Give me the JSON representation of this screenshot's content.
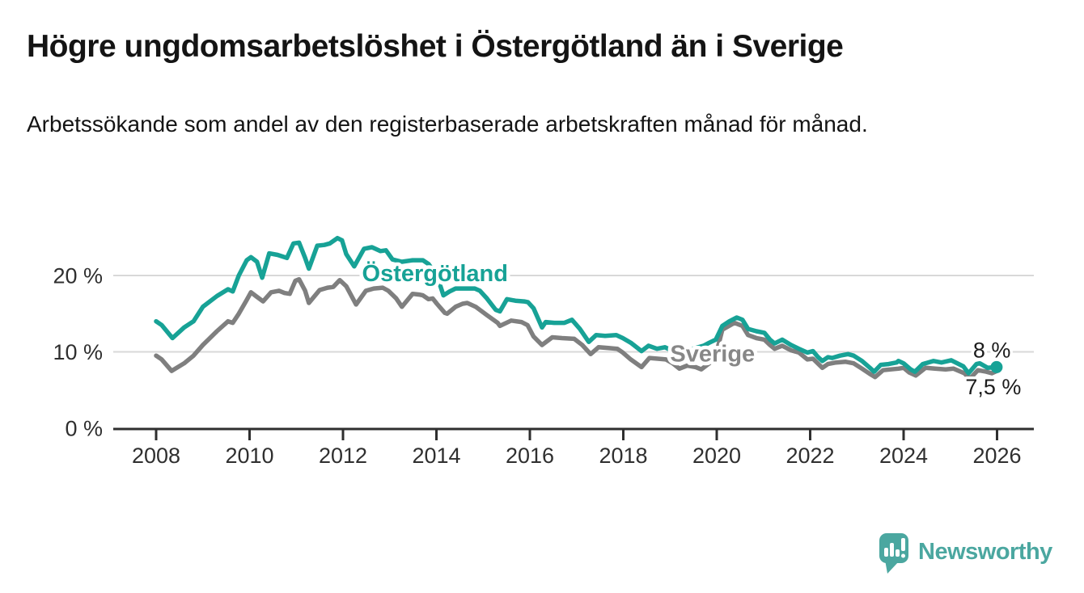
{
  "header": {
    "title": "Högre ungdomsarbetslöshet i Östergötland än i Sverige",
    "subtitle": "Arbetssökande som andel av den registerbaserade arbetskraften månad för månad."
  },
  "footer": {
    "brand": "Newsworthy",
    "brand_color": "#4ba7a0",
    "logo_icon": "speech-bubble-bar-chart-icon"
  },
  "colors": {
    "ostergotland": "#17a296",
    "sverige": "#7f7f7f",
    "sverige_label": "#878787",
    "grid": "#d8d8d8",
    "axis": "#2f2f2f",
    "text": "#141414",
    "end_label_text": "#1c1c1c"
  },
  "chart_data": {
    "type": "line",
    "title": "Högre ungdomsarbetslöshet i Östergötland än i Sverige",
    "subtitle": "Arbetssökande som andel av den registerbaserade arbetskraften månad för månad.",
    "grid": "horizontal-only",
    "legend_position": "inline-labels",
    "xlim": [
      2007.08,
      2026.8
    ],
    "ylim": [
      0,
      26.5
    ],
    "x_ticks": {
      "values": [
        2008,
        2010,
        2012,
        2014,
        2016,
        2018,
        2020,
        2022,
        2024,
        2026
      ],
      "labels": [
        "2008",
        "2010",
        "2012",
        "2014",
        "2016",
        "2018",
        "2020",
        "2022",
        "2024",
        "2026"
      ]
    },
    "y_ticks": [
      {
        "value": 0,
        "label": "0 %"
      },
      {
        "value": 10,
        "label": "10 %"
      },
      {
        "value": 20,
        "label": "20 %"
      }
    ],
    "series": [
      {
        "name": "Sverige",
        "slug": "sverige",
        "color": "#7f7f7f",
        "end_dot": false,
        "label": {
          "text": "Sverige",
          "color": "#878787",
          "x": 2019.91,
          "y": 9.8
        },
        "end_label": {
          "text": "7,5 %",
          "x": 2025.92,
          "y": 5.4
        },
        "last_value": "7,5 %",
        "points": [
          [
            2008.0,
            9.5
          ],
          [
            2008.12,
            9.0
          ],
          [
            2008.33,
            7.5
          ],
          [
            2008.6,
            8.5
          ],
          [
            2008.8,
            9.5
          ],
          [
            2009.0,
            10.9
          ],
          [
            2009.3,
            12.7
          ],
          [
            2009.54,
            14.0
          ],
          [
            2009.64,
            13.8
          ],
          [
            2009.77,
            15.0
          ],
          [
            2009.94,
            16.8
          ],
          [
            2010.03,
            17.8
          ],
          [
            2010.16,
            17.2
          ],
          [
            2010.29,
            16.6
          ],
          [
            2010.46,
            17.8
          ],
          [
            2010.63,
            18.0
          ],
          [
            2010.75,
            17.7
          ],
          [
            2010.86,
            17.6
          ],
          [
            2010.98,
            19.3
          ],
          [
            2011.06,
            19.5
          ],
          [
            2011.19,
            18.0
          ],
          [
            2011.27,
            16.4
          ],
          [
            2011.5,
            18.1
          ],
          [
            2011.67,
            18.4
          ],
          [
            2011.79,
            18.5
          ],
          [
            2011.93,
            19.4
          ],
          [
            2012.07,
            18.6
          ],
          [
            2012.28,
            16.2
          ],
          [
            2012.49,
            18.0
          ],
          [
            2012.66,
            18.3
          ],
          [
            2012.85,
            18.4
          ],
          [
            2012.97,
            18.0
          ],
          [
            2013.14,
            17.0
          ],
          [
            2013.26,
            15.9
          ],
          [
            2013.49,
            17.6
          ],
          [
            2013.63,
            17.5
          ],
          [
            2013.71,
            17.4
          ],
          [
            2013.83,
            16.9
          ],
          [
            2013.92,
            17.0
          ],
          [
            2014.01,
            16.3
          ],
          [
            2014.18,
            15.1
          ],
          [
            2014.23,
            15.0
          ],
          [
            2014.41,
            15.9
          ],
          [
            2014.56,
            16.3
          ],
          [
            2014.66,
            16.4
          ],
          [
            2014.84,
            15.9
          ],
          [
            2015.08,
            14.8
          ],
          [
            2015.31,
            13.8
          ],
          [
            2015.36,
            13.4
          ],
          [
            2015.6,
            14.1
          ],
          [
            2015.82,
            13.9
          ],
          [
            2015.95,
            13.5
          ],
          [
            2016.08,
            12.0
          ],
          [
            2016.26,
            10.9
          ],
          [
            2016.48,
            11.9
          ],
          [
            2016.69,
            11.8
          ],
          [
            2016.95,
            11.7
          ],
          [
            2017.12,
            10.9
          ],
          [
            2017.3,
            9.7
          ],
          [
            2017.47,
            10.6
          ],
          [
            2017.68,
            10.5
          ],
          [
            2017.87,
            10.4
          ],
          [
            2017.99,
            9.9
          ],
          [
            2018.16,
            9.0
          ],
          [
            2018.39,
            8.0
          ],
          [
            2018.56,
            9.2
          ],
          [
            2018.74,
            9.1
          ],
          [
            2018.91,
            9.0
          ],
          [
            2019.06,
            8.5
          ],
          [
            2019.2,
            7.8
          ],
          [
            2019.37,
            8.2
          ],
          [
            2019.55,
            8.0
          ],
          [
            2019.67,
            7.7
          ],
          [
            2019.84,
            8.5
          ],
          [
            2019.98,
            9.5
          ],
          [
            2020.12,
            12.9
          ],
          [
            2020.38,
            13.8
          ],
          [
            2020.55,
            13.4
          ],
          [
            2020.67,
            12.2
          ],
          [
            2020.85,
            11.8
          ],
          [
            2021.02,
            11.6
          ],
          [
            2021.14,
            10.9
          ],
          [
            2021.24,
            10.4
          ],
          [
            2021.4,
            10.8
          ],
          [
            2021.59,
            10.2
          ],
          [
            2021.76,
            9.9
          ],
          [
            2021.94,
            9.0
          ],
          [
            2022.06,
            9.1
          ],
          [
            2022.26,
            7.9
          ],
          [
            2022.38,
            8.4
          ],
          [
            2022.55,
            8.6
          ],
          [
            2022.76,
            8.7
          ],
          [
            2022.93,
            8.5
          ],
          [
            2023.11,
            7.8
          ],
          [
            2023.28,
            7.1
          ],
          [
            2023.39,
            6.7
          ],
          [
            2023.56,
            7.6
          ],
          [
            2023.73,
            7.7
          ],
          [
            2023.89,
            7.8
          ],
          [
            2024.0,
            7.9
          ],
          [
            2024.12,
            7.3
          ],
          [
            2024.26,
            6.9
          ],
          [
            2024.47,
            7.9
          ],
          [
            2024.67,
            7.8
          ],
          [
            2024.9,
            7.7
          ],
          [
            2025.07,
            7.8
          ],
          [
            2025.3,
            7.2
          ],
          [
            2025.42,
            6.5
          ],
          [
            2025.59,
            7.6
          ],
          [
            2025.77,
            7.4
          ],
          [
            2025.89,
            7.2
          ],
          [
            2026.0,
            7.5
          ]
        ]
      },
      {
        "name": "Östergötland",
        "slug": "ostergotland",
        "color": "#17a296",
        "end_dot": true,
        "label": {
          "text": "Östergötland",
          "color": "#17a296",
          "x": 2013.97,
          "y": 20.3
        },
        "end_label": {
          "text": "8 %",
          "x": 2025.89,
          "y": 10.2
        },
        "last_value": "8 %",
        "points": [
          [
            2008.0,
            14.0
          ],
          [
            2008.12,
            13.5
          ],
          [
            2008.35,
            11.8
          ],
          [
            2008.6,
            13.2
          ],
          [
            2008.8,
            14.0
          ],
          [
            2009.0,
            15.9
          ],
          [
            2009.3,
            17.3
          ],
          [
            2009.54,
            18.2
          ],
          [
            2009.64,
            17.9
          ],
          [
            2009.77,
            20.0
          ],
          [
            2009.94,
            22.0
          ],
          [
            2010.03,
            22.4
          ],
          [
            2010.16,
            21.8
          ],
          [
            2010.27,
            19.7
          ],
          [
            2010.42,
            22.9
          ],
          [
            2010.6,
            22.7
          ],
          [
            2010.8,
            22.3
          ],
          [
            2010.94,
            24.2
          ],
          [
            2011.06,
            24.3
          ],
          [
            2011.19,
            22.3
          ],
          [
            2011.27,
            20.9
          ],
          [
            2011.45,
            23.9
          ],
          [
            2011.6,
            24.0
          ],
          [
            2011.72,
            24.2
          ],
          [
            2011.88,
            24.9
          ],
          [
            2011.98,
            24.6
          ],
          [
            2012.07,
            22.8
          ],
          [
            2012.24,
            21.2
          ],
          [
            2012.45,
            23.5
          ],
          [
            2012.62,
            23.7
          ],
          [
            2012.8,
            23.2
          ],
          [
            2012.92,
            23.3
          ],
          [
            2013.06,
            22.1
          ],
          [
            2013.26,
            21.8
          ],
          [
            2013.49,
            22.0
          ],
          [
            2013.71,
            22.0
          ],
          [
            2013.83,
            21.5
          ],
          [
            2014.01,
            20.0
          ],
          [
            2014.15,
            17.4
          ],
          [
            2014.28,
            17.9
          ],
          [
            2014.41,
            18.3
          ],
          [
            2014.61,
            18.3
          ],
          [
            2014.82,
            18.3
          ],
          [
            2014.93,
            18.0
          ],
          [
            2015.08,
            17.0
          ],
          [
            2015.27,
            15.5
          ],
          [
            2015.36,
            15.3
          ],
          [
            2015.51,
            16.9
          ],
          [
            2015.69,
            16.7
          ],
          [
            2015.88,
            16.6
          ],
          [
            2015.96,
            16.5
          ],
          [
            2016.08,
            15.7
          ],
          [
            2016.26,
            13.2
          ],
          [
            2016.34,
            13.9
          ],
          [
            2016.52,
            13.8
          ],
          [
            2016.74,
            13.8
          ],
          [
            2016.9,
            14.2
          ],
          [
            2017.07,
            13.0
          ],
          [
            2017.26,
            11.3
          ],
          [
            2017.42,
            12.2
          ],
          [
            2017.61,
            12.1
          ],
          [
            2017.85,
            12.2
          ],
          [
            2017.99,
            11.8
          ],
          [
            2018.16,
            11.2
          ],
          [
            2018.39,
            10.1
          ],
          [
            2018.54,
            10.8
          ],
          [
            2018.72,
            10.4
          ],
          [
            2018.89,
            10.6
          ],
          [
            2019.03,
            10.2
          ],
          [
            2019.2,
            9.9
          ],
          [
            2019.37,
            10.2
          ],
          [
            2019.55,
            10.5
          ],
          [
            2019.72,
            10.8
          ],
          [
            2019.84,
            11.2
          ],
          [
            2019.98,
            11.6
          ],
          [
            2020.12,
            13.4
          ],
          [
            2020.27,
            14.0
          ],
          [
            2020.43,
            14.5
          ],
          [
            2020.55,
            14.2
          ],
          [
            2020.67,
            13.0
          ],
          [
            2020.85,
            12.7
          ],
          [
            2021.02,
            12.5
          ],
          [
            2021.14,
            11.6
          ],
          [
            2021.24,
            11.1
          ],
          [
            2021.4,
            11.6
          ],
          [
            2021.59,
            10.9
          ],
          [
            2021.76,
            10.4
          ],
          [
            2021.94,
            9.9
          ],
          [
            2022.06,
            10.1
          ],
          [
            2022.17,
            9.3
          ],
          [
            2022.26,
            8.8
          ],
          [
            2022.38,
            9.3
          ],
          [
            2022.47,
            9.2
          ],
          [
            2022.64,
            9.5
          ],
          [
            2022.81,
            9.7
          ],
          [
            2022.93,
            9.5
          ],
          [
            2023.11,
            8.8
          ],
          [
            2023.28,
            7.9
          ],
          [
            2023.37,
            7.4
          ],
          [
            2023.51,
            8.3
          ],
          [
            2023.68,
            8.4
          ],
          [
            2023.85,
            8.6
          ],
          [
            2023.89,
            8.8
          ],
          [
            2024.0,
            8.5
          ],
          [
            2024.15,
            7.7
          ],
          [
            2024.24,
            7.4
          ],
          [
            2024.41,
            8.4
          ],
          [
            2024.64,
            8.8
          ],
          [
            2024.81,
            8.6
          ],
          [
            2025.02,
            8.9
          ],
          [
            2025.28,
            8.1
          ],
          [
            2025.39,
            7.2
          ],
          [
            2025.56,
            8.4
          ],
          [
            2025.63,
            8.5
          ],
          [
            2025.8,
            7.9
          ],
          [
            2025.99,
            8.0
          ]
        ]
      }
    ]
  }
}
